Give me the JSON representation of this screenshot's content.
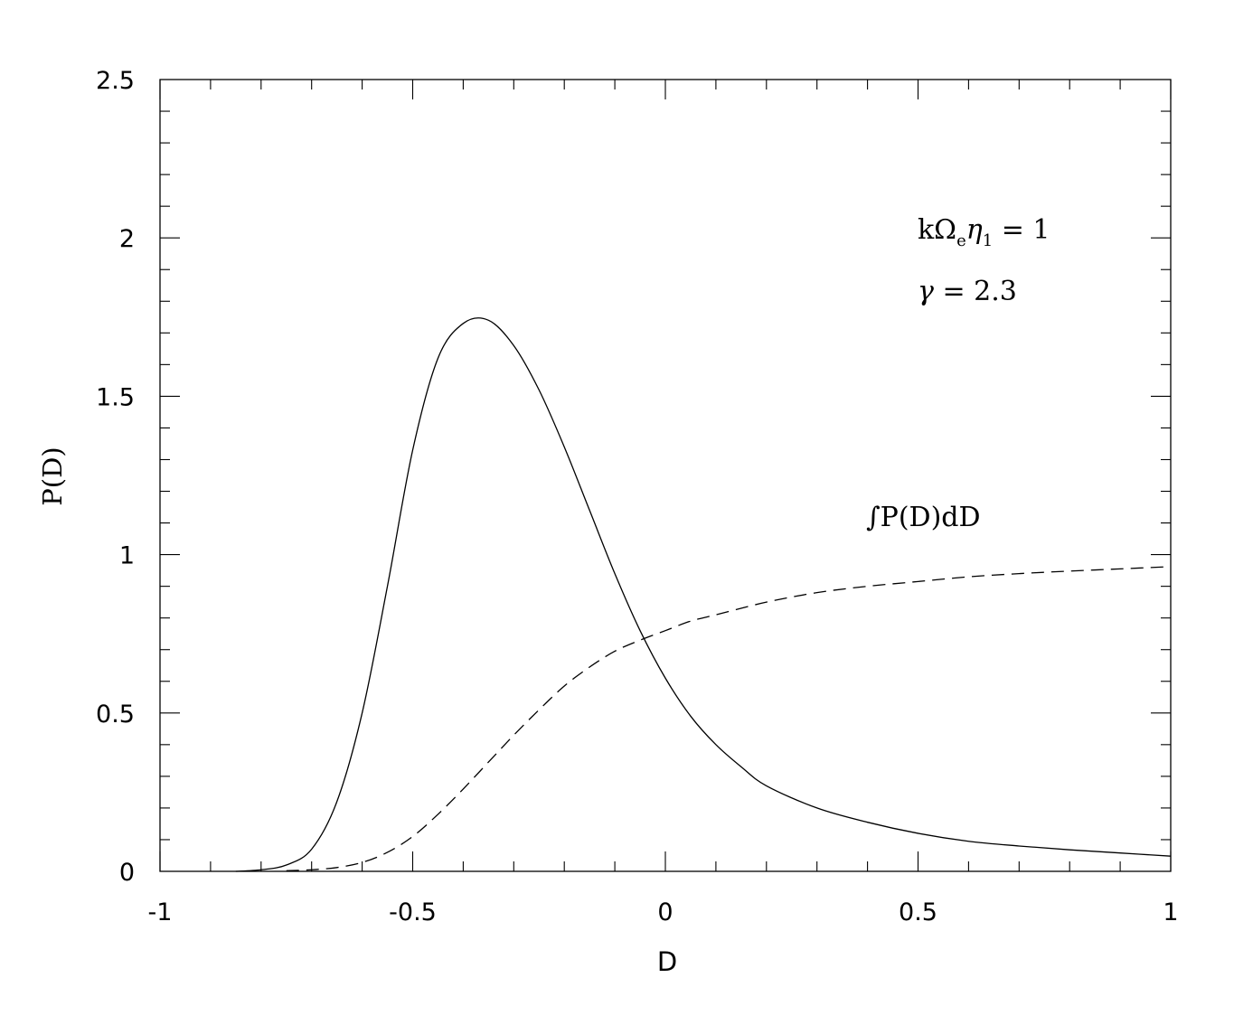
{
  "chart_data": {
    "type": "line",
    "title": "",
    "xlabel": "D",
    "ylabel": "P(D)",
    "xlim": [
      -1,
      1
    ],
    "ylim": [
      0,
      2.5
    ],
    "x_ticks": [
      "-1",
      "-0.5",
      "0",
      "0.5",
      "1"
    ],
    "y_ticks": [
      "0",
      "0.5",
      "1",
      "1.5",
      "2",
      "2.5"
    ],
    "grid": false,
    "legend": "none",
    "series": [
      {
        "style": "solid",
        "x": [
          -0.85,
          -0.8,
          -0.75,
          -0.7,
          -0.65,
          -0.6,
          -0.55,
          -0.5,
          -0.45,
          -0.4,
          -0.35,
          -0.3,
          -0.25,
          -0.2,
          -0.15,
          -0.1,
          -0.05,
          0.0,
          0.05,
          0.1,
          0.15,
          0.2,
          0.3,
          0.4,
          0.5,
          0.6,
          0.7,
          0.8,
          0.9,
          1.0
        ],
        "values": [
          0.0,
          0.005,
          0.02,
          0.07,
          0.22,
          0.5,
          0.9,
          1.33,
          1.62,
          1.73,
          1.74,
          1.66,
          1.52,
          1.34,
          1.14,
          0.94,
          0.76,
          0.61,
          0.49,
          0.4,
          0.33,
          0.27,
          0.2,
          0.155,
          0.12,
          0.095,
          0.08,
          0.068,
          0.058,
          0.048
        ]
      },
      {
        "style": "dashed",
        "label": "∫P(D)dD",
        "x": [
          -0.75,
          -0.7,
          -0.65,
          -0.6,
          -0.55,
          -0.5,
          -0.45,
          -0.4,
          -0.35,
          -0.3,
          -0.25,
          -0.2,
          -0.15,
          -0.1,
          -0.05,
          0.0,
          0.05,
          0.1,
          0.2,
          0.3,
          0.4,
          0.5,
          0.6,
          0.7,
          0.8,
          0.9,
          1.0
        ],
        "values": [
          0.002,
          0.005,
          0.012,
          0.028,
          0.06,
          0.11,
          0.18,
          0.26,
          0.345,
          0.43,
          0.51,
          0.585,
          0.645,
          0.695,
          0.73,
          0.76,
          0.79,
          0.81,
          0.85,
          0.88,
          0.9,
          0.915,
          0.93,
          0.94,
          0.948,
          0.955,
          0.962
        ]
      }
    ],
    "annotations": [
      {
        "name": "param-k",
        "text_main": "kΩ",
        "text_sub1": "e",
        "text_eta": "η",
        "text_sub2": "1",
        "text_eq": " = 1"
      },
      {
        "name": "param-gamma",
        "text_gamma": "γ",
        "text_eq": " = 2.3"
      }
    ]
  }
}
